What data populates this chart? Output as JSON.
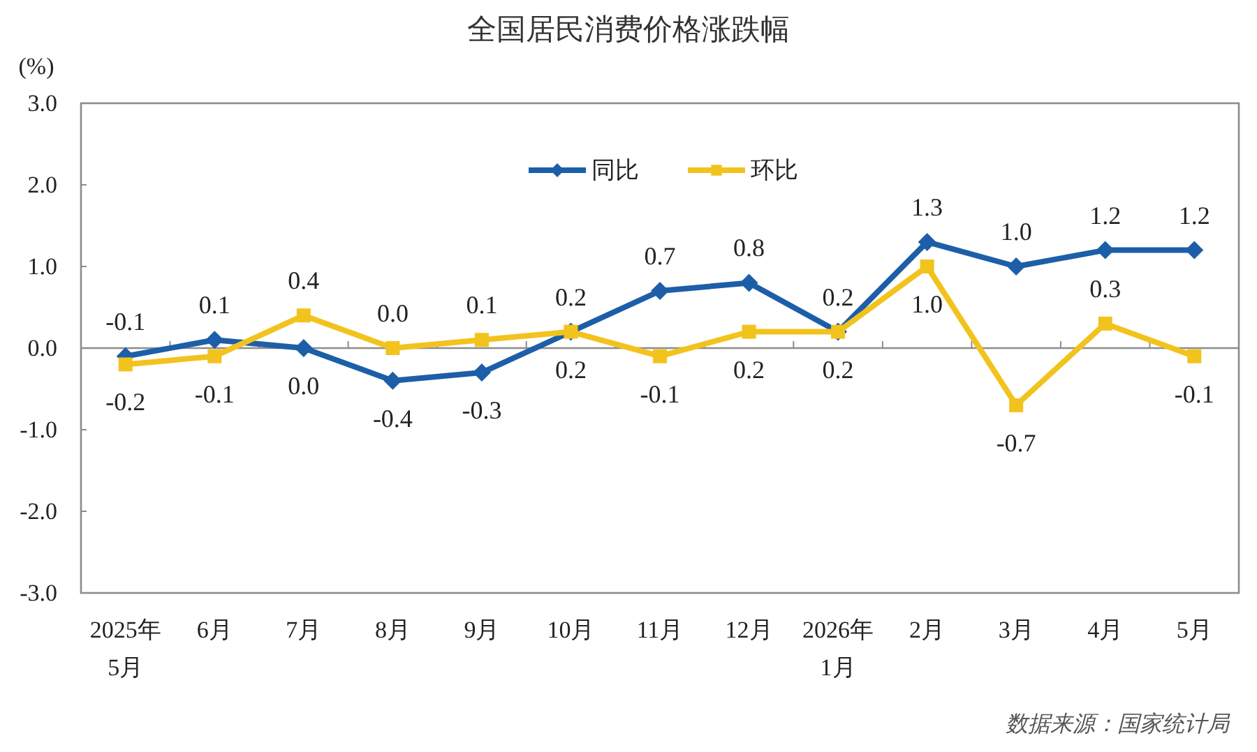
{
  "chart_data": {
    "type": "line",
    "title": "全国居民消费价格涨跌幅",
    "ylabel": "(%)",
    "categories": [
      "2025年\n5月",
      "6月",
      "7月",
      "8月",
      "9月",
      "10月",
      "11月",
      "12月",
      "2026年\n1月",
      "2月",
      "3月",
      "4月",
      "5月"
    ],
    "series": [
      {
        "name": "同比",
        "color": "#1d5ea8",
        "marker": "diamond",
        "values": [
          -0.1,
          0.1,
          0.0,
          -0.4,
          -0.3,
          0.2,
          0.7,
          0.8,
          0.2,
          1.3,
          1.0,
          1.2,
          1.2
        ],
        "value_labels": [
          "-0.1",
          "0.1",
          "0.0",
          "-0.4",
          "-0.3",
          "0.2",
          "0.7",
          "0.8",
          "0.2",
          "1.3",
          "1.0",
          "1.2",
          "1.2"
        ]
      },
      {
        "name": "环比",
        "color": "#f2c31d",
        "marker": "square",
        "values": [
          -0.2,
          -0.1,
          0.4,
          0.0,
          0.1,
          0.2,
          -0.1,
          0.2,
          0.2,
          1.0,
          -0.7,
          0.3,
          -0.1
        ],
        "value_labels": [
          "-0.2",
          "-0.1",
          "0.4",
          "0.0",
          "0.1",
          "0.2",
          "-0.1",
          "0.2",
          "0.2",
          "1.0",
          "-0.7",
          "0.3",
          "-0.1"
        ]
      }
    ],
    "ylim": [
      -3,
      3
    ],
    "yticks": [
      {
        "value": -3,
        "label": "-3.0"
      },
      {
        "value": -2,
        "label": "-2.0"
      },
      {
        "value": -1,
        "label": "-1.0"
      },
      {
        "value": 0,
        "label": "0.0"
      },
      {
        "value": 1,
        "label": "1.0"
      },
      {
        "value": 2,
        "label": "2.0"
      },
      {
        "value": 3,
        "label": "3.0"
      }
    ],
    "legend": "top",
    "line_style": "solid",
    "annotations": [
      "数据来源：国家统计局"
    ]
  }
}
